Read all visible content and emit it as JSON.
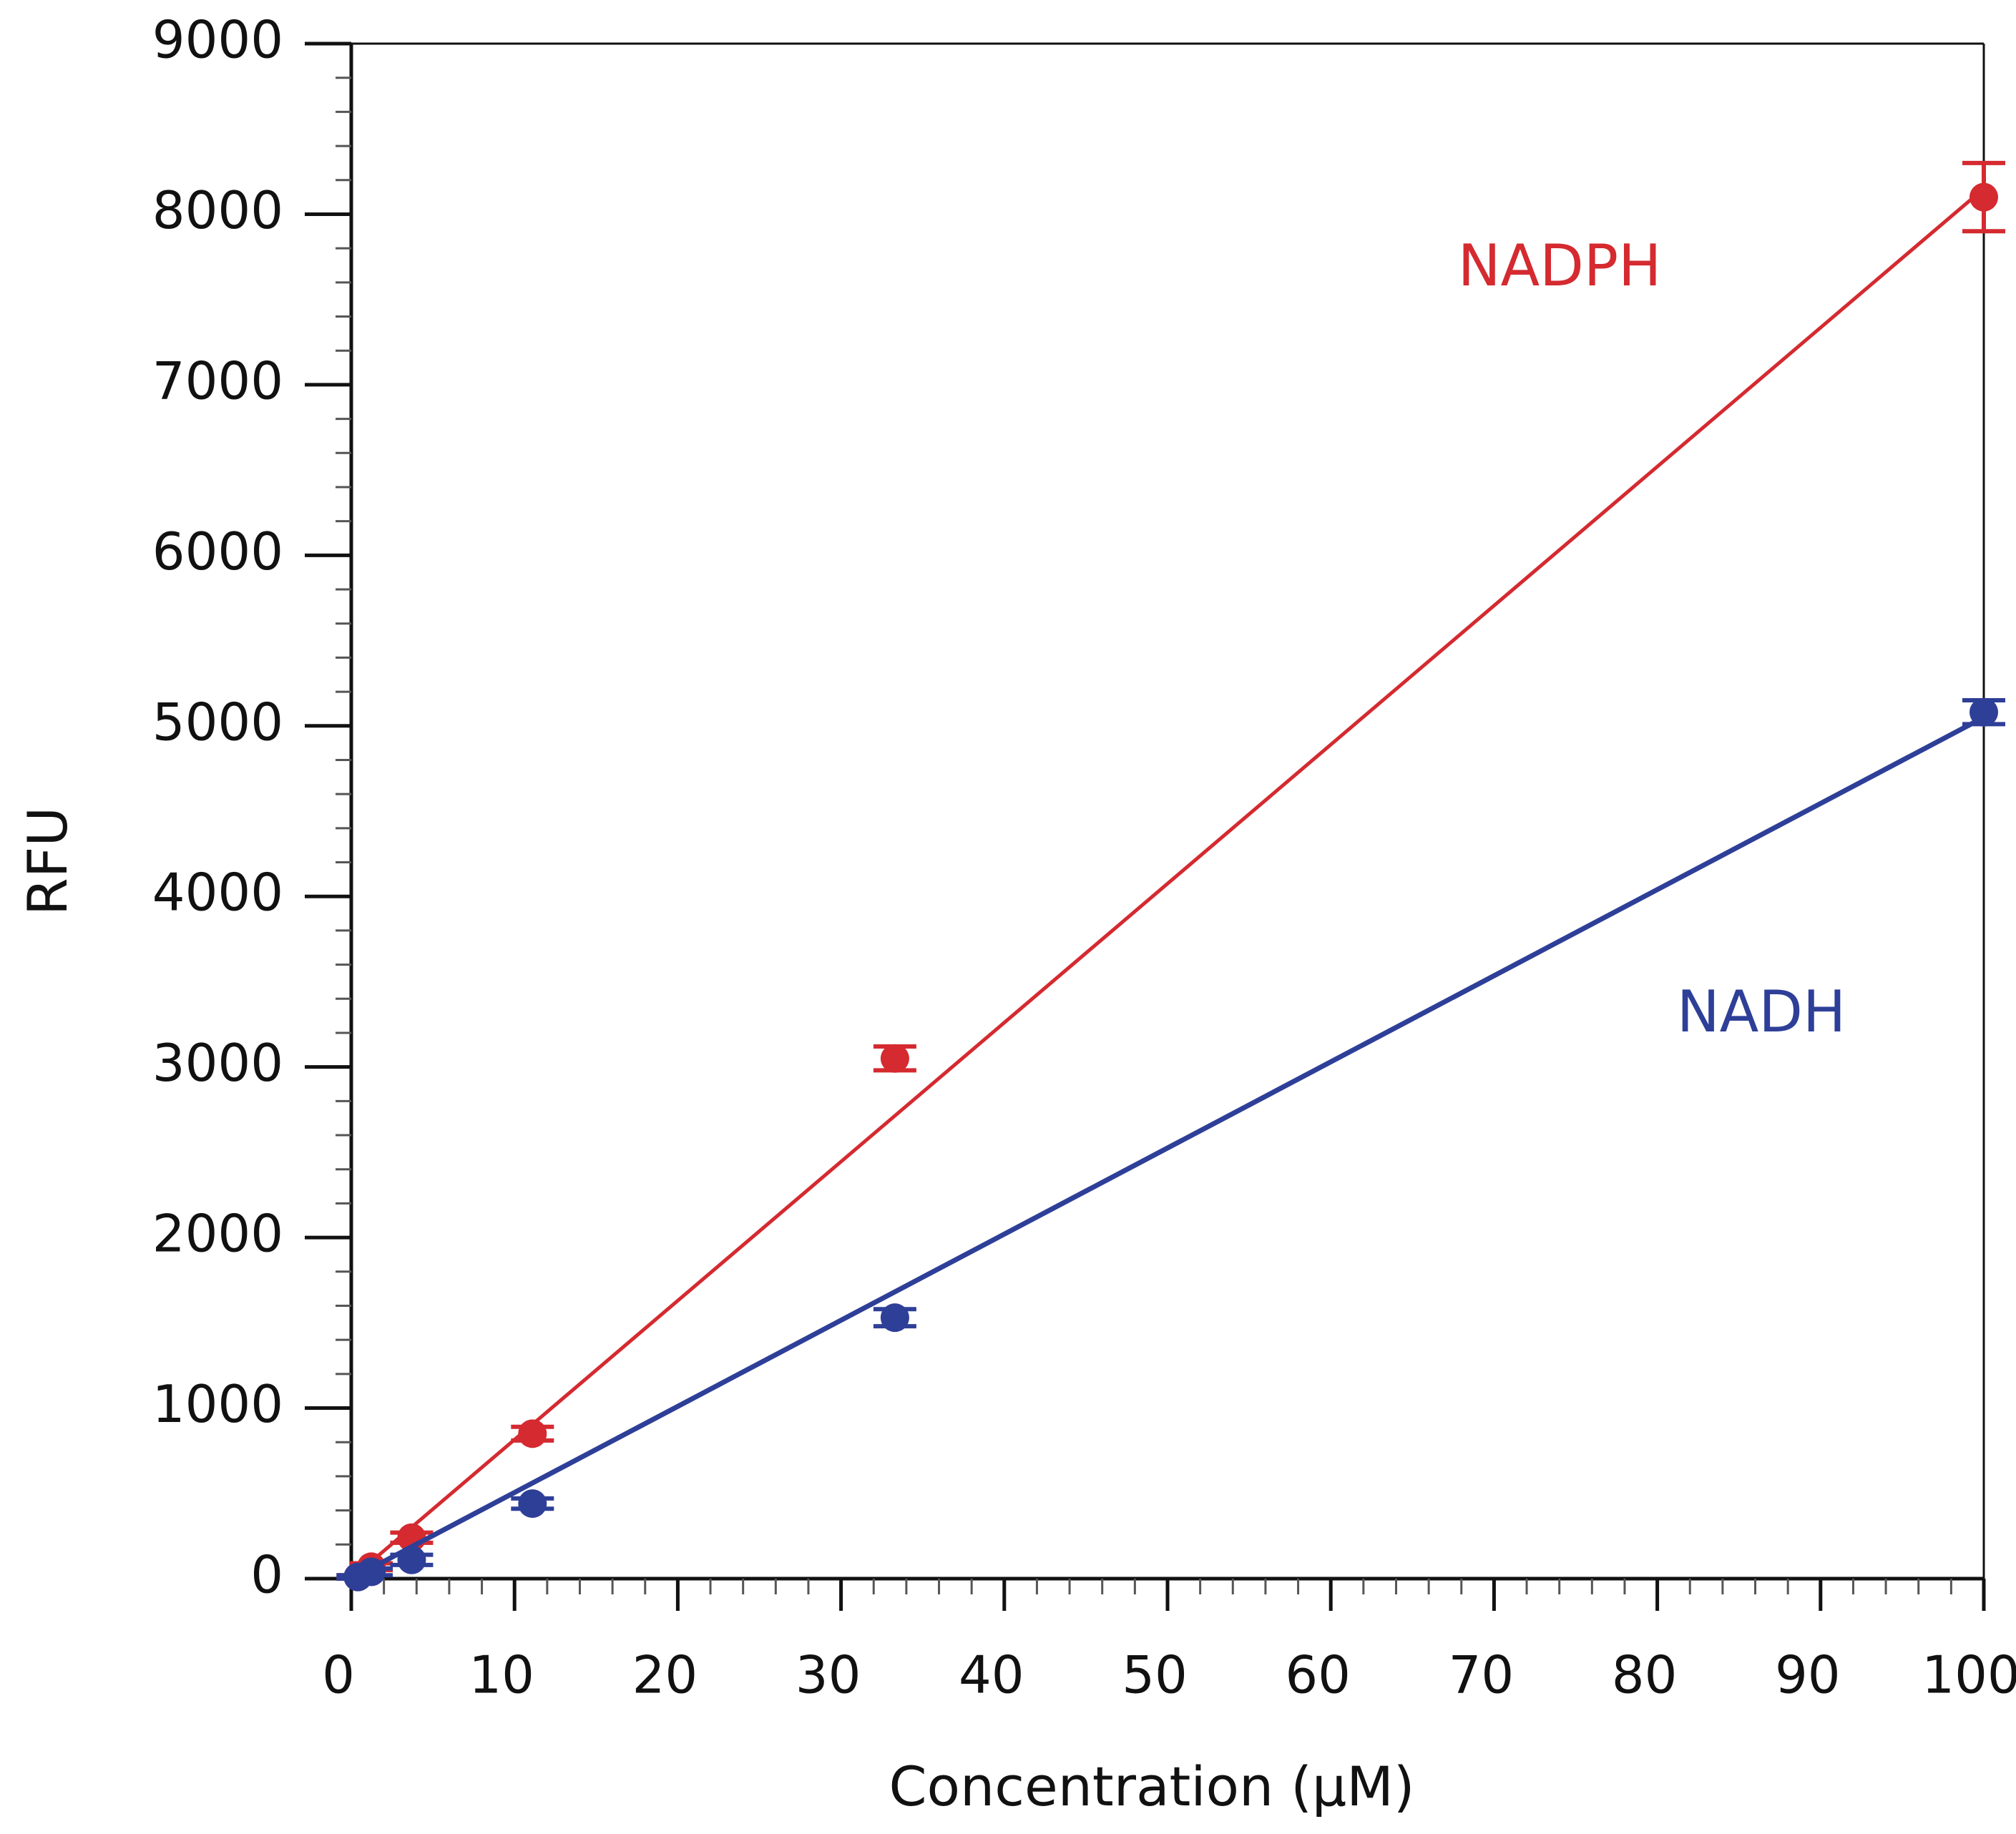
{
  "chart_data": {
    "type": "scatter",
    "xlabel": "Concentration (µM)",
    "ylabel": "RFU",
    "xlim": [
      0,
      100
    ],
    "ylim": [
      0,
      9000
    ],
    "xticks": [
      0,
      10,
      20,
      30,
      40,
      50,
      60,
      70,
      80,
      90,
      100
    ],
    "yticks": [
      0,
      1000,
      2000,
      3000,
      4000,
      5000,
      6000,
      7000,
      8000,
      9000
    ],
    "xminor": 2,
    "yminor": 200,
    "series": [
      {
        "name": "NADPH",
        "color": "#d42a30",
        "x": [
          0.41,
          1.23,
          3.7,
          11.1,
          33.3,
          100
        ],
        "values": [
          10,
          70,
          240,
          850,
          3050,
          8100
        ],
        "errors": [
          10,
          20,
          30,
          40,
          70,
          200
        ],
        "fit_x": [
          0,
          100
        ],
        "fit_values": [
          0,
          8150
        ]
      },
      {
        "name": "NADH",
        "color": "#2e3f98",
        "x": [
          0.41,
          1.23,
          3.7,
          11.1,
          33.3,
          100
        ],
        "values": [
          10,
          40,
          110,
          440,
          1530,
          5080
        ],
        "errors": [
          10,
          20,
          30,
          30,
          50,
          70
        ],
        "fit_x": [
          0,
          100
        ],
        "fit_values": [
          0,
          5050
        ]
      }
    ]
  }
}
